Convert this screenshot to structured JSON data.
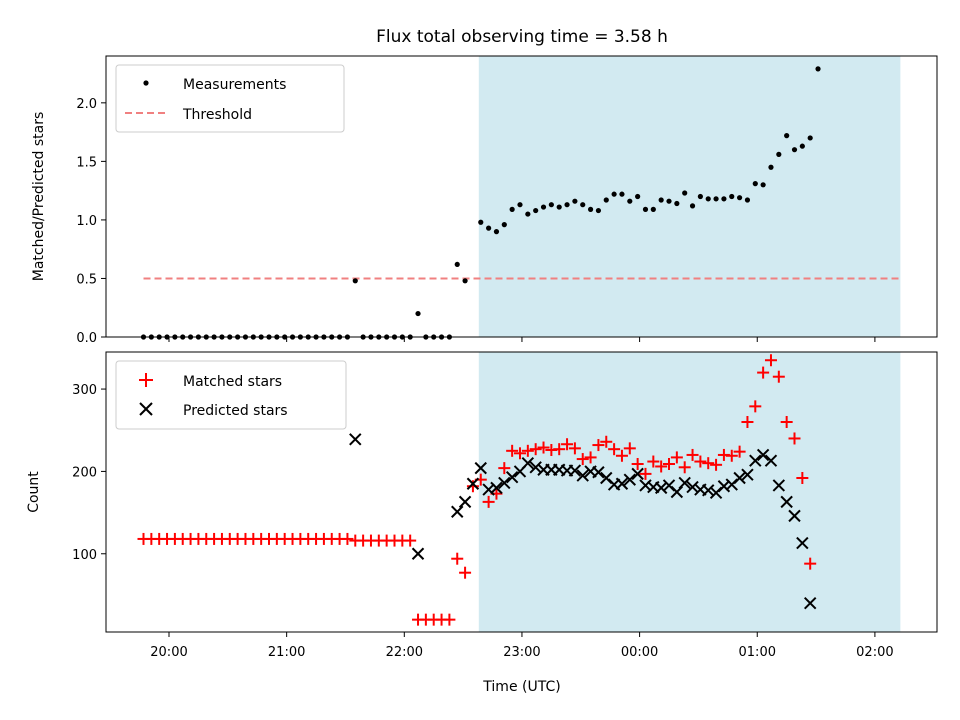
{
  "chart_data": {
    "title": "Flux total observing time = 3.58 h",
    "xlabel": "Time (UTC)",
    "x_ticks": [
      "20:00",
      "21:00",
      "22:00",
      "23:00",
      "00:00",
      "01:00",
      "02:00"
    ],
    "shaded_region": {
      "start": "22:38",
      "end": "02:13",
      "color": "#add8e6"
    },
    "panels": [
      {
        "type": "scatter",
        "ylabel": "Matched/Predicted stars",
        "ylim": [
          0,
          2.4
        ],
        "yticks": [
          "0.0",
          "0.5",
          "1.0",
          "1.5",
          "2.0"
        ],
        "legend": {
          "placement": "top-left",
          "entries": [
            "Measurements",
            "Threshold"
          ]
        },
        "series": [
          {
            "name": "Measurements",
            "color": "#000000",
            "marker": "dot",
            "points": [
              [
                "19:47",
                0
              ],
              [
                "19:51",
                0
              ],
              [
                "19:55",
                0
              ],
              [
                "19:59",
                0
              ],
              [
                "20:03",
                0
              ],
              [
                "20:07",
                0
              ],
              [
                "20:11",
                0
              ],
              [
                "20:15",
                0
              ],
              [
                "20:19",
                0
              ],
              [
                "20:23",
                0
              ],
              [
                "20:27",
                0
              ],
              [
                "20:31",
                0
              ],
              [
                "20:35",
                0
              ],
              [
                "20:39",
                0
              ],
              [
                "20:43",
                0
              ],
              [
                "20:47",
                0
              ],
              [
                "20:51",
                0
              ],
              [
                "20:55",
                0
              ],
              [
                "20:59",
                0
              ],
              [
                "21:03",
                0
              ],
              [
                "21:07",
                0
              ],
              [
                "21:11",
                0
              ],
              [
                "21:15",
                0
              ],
              [
                "21:19",
                0
              ],
              [
                "21:23",
                0
              ],
              [
                "21:27",
                0
              ],
              [
                "21:31",
                0
              ],
              [
                "21:35",
                0.48
              ],
              [
                "21:39",
                0
              ],
              [
                "21:43",
                0
              ],
              [
                "21:47",
                0
              ],
              [
                "21:51",
                0
              ],
              [
                "21:55",
                0
              ],
              [
                "21:59",
                0
              ],
              [
                "22:03",
                0
              ],
              [
                "22:07",
                0.2
              ],
              [
                "22:11",
                0
              ],
              [
                "22:15",
                0
              ],
              [
                "22:19",
                0
              ],
              [
                "22:23",
                0
              ],
              [
                "22:27",
                0.62
              ],
              [
                "22:31",
                0.48
              ],
              [
                "22:39",
                0.98
              ],
              [
                "22:43",
                0.93
              ],
              [
                "22:47",
                0.9
              ],
              [
                "22:51",
                0.96
              ],
              [
                "22:55",
                1.09
              ],
              [
                "22:59",
                1.13
              ],
              [
                "23:03",
                1.05
              ],
              [
                "23:07",
                1.08
              ],
              [
                "23:11",
                1.11
              ],
              [
                "23:15",
                1.13
              ],
              [
                "23:19",
                1.11
              ],
              [
                "23:23",
                1.13
              ],
              [
                "23:27",
                1.16
              ],
              [
                "23:31",
                1.13
              ],
              [
                "23:35",
                1.09
              ],
              [
                "23:39",
                1.08
              ],
              [
                "23:43",
                1.17
              ],
              [
                "23:47",
                1.22
              ],
              [
                "23:51",
                1.22
              ],
              [
                "23:55",
                1.16
              ],
              [
                "23:59",
                1.2
              ],
              [
                "00:03",
                1.09
              ],
              [
                "00:07",
                1.09
              ],
              [
                "00:11",
                1.17
              ],
              [
                "00:15",
                1.16
              ],
              [
                "00:19",
                1.14
              ],
              [
                "00:23",
                1.23
              ],
              [
                "00:27",
                1.12
              ],
              [
                "00:31",
                1.2
              ],
              [
                "00:35",
                1.18
              ],
              [
                "00:39",
                1.18
              ],
              [
                "00:43",
                1.18
              ],
              [
                "00:47",
                1.2
              ],
              [
                "00:51",
                1.19
              ],
              [
                "00:55",
                1.17
              ],
              [
                "00:59",
                1.31
              ],
              [
                "01:03",
                1.3
              ],
              [
                "01:07",
                1.45
              ],
              [
                "01:11",
                1.56
              ],
              [
                "01:15",
                1.72
              ],
              [
                "01:19",
                1.6
              ],
              [
                "01:23",
                1.63
              ],
              [
                "01:27",
                1.7
              ],
              [
                "01:31",
                2.29
              ]
            ]
          },
          {
            "name": "Threshold",
            "color": "#f08080",
            "style": "dashed",
            "y": 0.5,
            "x_range": [
              "19:47",
              "02:13"
            ]
          }
        ]
      },
      {
        "type": "scatter",
        "ylabel": "Count",
        "ylim": [
          5,
          345
        ],
        "yticks": [
          "100",
          "200",
          "300"
        ],
        "legend": {
          "placement": "top-left",
          "entries": [
            "Matched stars",
            "Predicted stars"
          ]
        },
        "series": [
          {
            "name": "Matched stars",
            "color": "#ff0000",
            "marker": "plus",
            "points": [
              [
                "19:47",
                118
              ],
              [
                "19:51",
                118
              ],
              [
                "19:55",
                118
              ],
              [
                "19:59",
                118
              ],
              [
                "20:03",
                118
              ],
              [
                "20:07",
                118
              ],
              [
                "20:11",
                118
              ],
              [
                "20:15",
                118
              ],
              [
                "20:19",
                118
              ],
              [
                "20:23",
                118
              ],
              [
                "20:27",
                118
              ],
              [
                "20:31",
                118
              ],
              [
                "20:35",
                118
              ],
              [
                "20:39",
                118
              ],
              [
                "20:43",
                118
              ],
              [
                "20:47",
                118
              ],
              [
                "20:51",
                118
              ],
              [
                "20:55",
                118
              ],
              [
                "20:59",
                118
              ],
              [
                "21:03",
                118
              ],
              [
                "21:07",
                118
              ],
              [
                "21:11",
                118
              ],
              [
                "21:15",
                118
              ],
              [
                "21:19",
                118
              ],
              [
                "21:23",
                118
              ],
              [
                "21:27",
                118
              ],
              [
                "21:31",
                118
              ],
              [
                "21:35",
                116
              ],
              [
                "21:39",
                116
              ],
              [
                "21:43",
                116
              ],
              [
                "21:47",
                116
              ],
              [
                "21:51",
                116
              ],
              [
                "21:55",
                116
              ],
              [
                "21:59",
                116
              ],
              [
                "22:03",
                116
              ],
              [
                "22:07",
                20
              ],
              [
                "22:11",
                20
              ],
              [
                "22:15",
                20
              ],
              [
                "22:19",
                20
              ],
              [
                "22:23",
                20
              ],
              [
                "22:27",
                94
              ],
              [
                "22:31",
                77
              ],
              [
                "22:35",
                182
              ],
              [
                "22:39",
                190
              ],
              [
                "22:43",
                163
              ],
              [
                "22:47",
                173
              ],
              [
                "22:51",
                204
              ],
              [
                "22:55",
                225
              ],
              [
                "22:59",
                222
              ],
              [
                "23:03",
                225
              ],
              [
                "23:07",
                227
              ],
              [
                "23:11",
                229
              ],
              [
                "23:15",
                226
              ],
              [
                "23:19",
                227
              ],
              [
                "23:23",
                233
              ],
              [
                "23:27",
                228
              ],
              [
                "23:31",
                215
              ],
              [
                "23:35",
                217
              ],
              [
                "23:39",
                232
              ],
              [
                "23:43",
                236
              ],
              [
                "23:47",
                227
              ],
              [
                "23:51",
                219
              ],
              [
                "23:55",
                228
              ],
              [
                "23:59",
                209
              ],
              [
                "00:03",
                197
              ],
              [
                "00:07",
                212
              ],
              [
                "00:11",
                206
              ],
              [
                "00:15",
                209
              ],
              [
                "00:19",
                217
              ],
              [
                "00:23",
                205
              ],
              [
                "00:27",
                220
              ],
              [
                "00:31",
                212
              ],
              [
                "00:35",
                210
              ],
              [
                "00:39",
                208
              ],
              [
                "00:43",
                220
              ],
              [
                "00:47",
                219
              ],
              [
                "00:51",
                224
              ],
              [
                "00:55",
                260
              ],
              [
                "00:59",
                279
              ],
              [
                "01:03",
                320
              ],
              [
                "01:07",
                335
              ],
              [
                "01:11",
                315
              ],
              [
                "01:15",
                260
              ],
              [
                "01:19",
                240
              ],
              [
                "01:23",
                192
              ],
              [
                "01:27",
                88
              ]
            ]
          },
          {
            "name": "Predicted stars",
            "color": "#000000",
            "marker": "x",
            "points": [
              [
                "21:35",
                239
              ],
              [
                "22:07",
                100
              ],
              [
                "22:27",
                151
              ],
              [
                "22:31",
                163
              ],
              [
                "22:35",
                185
              ],
              [
                "22:39",
                204
              ],
              [
                "22:43",
                178
              ],
              [
                "22:47",
                180
              ],
              [
                "22:51",
                186
              ],
              [
                "22:55",
                193
              ],
              [
                "22:59",
                200
              ],
              [
                "23:03",
                210
              ],
              [
                "23:07",
                205
              ],
              [
                "23:11",
                202
              ],
              [
                "23:15",
                202
              ],
              [
                "23:19",
                202
              ],
              [
                "23:23",
                201
              ],
              [
                "23:27",
                201
              ],
              [
                "23:31",
                195
              ],
              [
                "23:35",
                200
              ],
              [
                "23:39",
                199
              ],
              [
                "23:43",
                192
              ],
              [
                "23:47",
                184
              ],
              [
                "23:51",
                185
              ],
              [
                "23:55",
                190
              ],
              [
                "23:59",
                197
              ],
              [
                "00:03",
                183
              ],
              [
                "00:07",
                181
              ],
              [
                "00:11",
                180
              ],
              [
                "00:15",
                183
              ],
              [
                "00:19",
                175
              ],
              [
                "00:23",
                186
              ],
              [
                "00:27",
                181
              ],
              [
                "00:31",
                178
              ],
              [
                "00:35",
                177
              ],
              [
                "00:39",
                174
              ],
              [
                "00:43",
                182
              ],
              [
                "00:47",
                184
              ],
              [
                "00:51",
                192
              ],
              [
                "00:55",
                196
              ],
              [
                "00:59",
                213
              ],
              [
                "01:03",
                220
              ],
              [
                "01:07",
                213
              ],
              [
                "01:11",
                183
              ],
              [
                "01:15",
                163
              ],
              [
                "01:19",
                146
              ],
              [
                "01:23",
                113
              ],
              [
                "01:27",
                40
              ]
            ]
          }
        ]
      }
    ]
  }
}
